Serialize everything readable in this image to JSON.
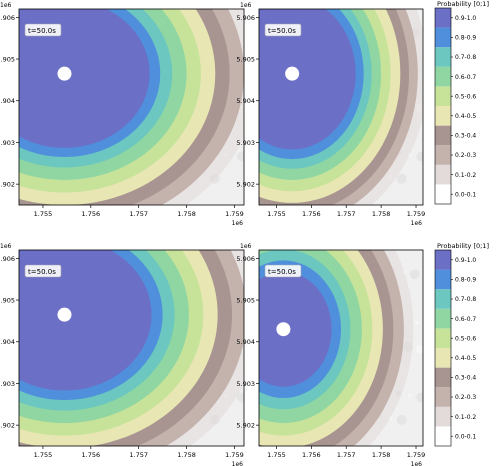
{
  "chart_data": {
    "type": "heatmap",
    "description_units": "Probability contours over shaded terrain",
    "x_offset_label": "1e6",
    "y_offset_label": "1e6",
    "xlim": [
      1.7545,
      1.7592
    ],
    "ylim": [
      5.9015,
      5.9062
    ],
    "x_ticks": [
      1.755,
      1.756,
      1.757,
      1.758,
      1.759
    ],
    "y_ticks": [
      5.902,
      5.903,
      5.904,
      5.905,
      5.906
    ],
    "x_tick_labels": [
      "1.755",
      "1.756",
      "1.757",
      "1.758",
      "1.759"
    ],
    "y_tick_labels": [
      "5.902",
      "5.903",
      "5.904",
      "5.905",
      "5.906"
    ],
    "colorbar": {
      "title": "Probability [0;1]",
      "levels": [
        "0.0-0.1",
        "0.1-0.2",
        "0.2-0.3",
        "0.3-0.4",
        "0.4-0.5",
        "0.5-0.6",
        "0.6-0.7",
        "0.7-0.8",
        "0.8-0.9",
        "0.9-1.0"
      ],
      "colors": [
        "#ffffff",
        "#e3dada",
        "#c4b2ad",
        "#a89490",
        "#e8e6b3",
        "#c7e39a",
        "#8fd6a2",
        "#6bc7c0",
        "#4f8fdc",
        "#6c6fc6"
      ]
    },
    "panels": [
      {
        "label": "t=50.0s",
        "center": [
          1.75545,
          5.90465
        ],
        "radii": [
          0.00375,
          0.00345,
          0.00315,
          0.00285,
          0.00255,
          0.00225,
          0.002,
          0.00178
        ],
        "colorbar": true
      },
      {
        "label": "t=50.0s",
        "center": [
          1.75545,
          5.90465
        ],
        "radii": [
          0.0036,
          0.00335,
          0.0031,
          0.00282,
          0.00255,
          0.00228,
          0.00205,
          0.00182
        ],
        "colorbar": true
      },
      {
        "label": "t=50.0s",
        "center": [
          1.75545,
          5.90465
        ],
        "radii": [
          0.0038,
          0.0035,
          0.0032,
          0.0029,
          0.0026,
          0.0023,
          0.00205,
          0.00182
        ],
        "colorbar": false
      },
      {
        "label": "t=50.0s",
        "center": [
          1.7552,
          5.9043
        ],
        "radii": [
          0.00345,
          0.00315,
          0.00285,
          0.00255,
          0.00225,
          0.00192,
          0.00165,
          0.00138
        ],
        "colorbar": true
      }
    ]
  }
}
